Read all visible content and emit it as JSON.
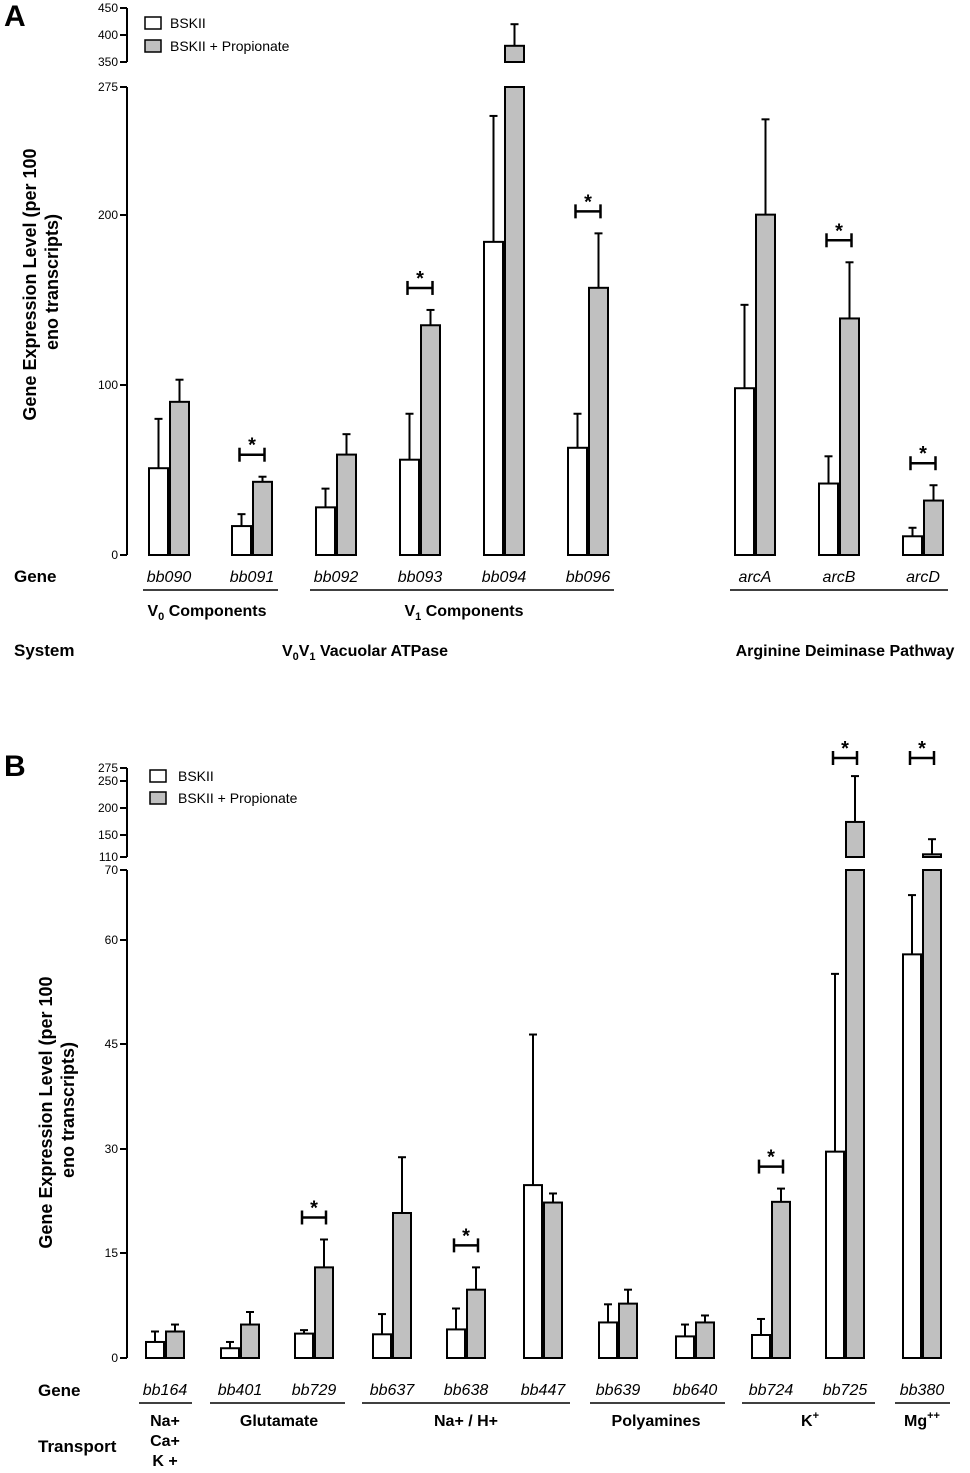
{
  "panels": [
    {
      "label": "A",
      "ylabel_lines": [
        "Gene Expression Level (per 100",
        "eno transcripts)"
      ],
      "legend": [
        "BSKII",
        "BSKII + Propionate"
      ],
      "lower_ticks": [
        "0",
        "100",
        "200",
        "275"
      ],
      "upper_ticks": [
        "350",
        "400",
        "450"
      ],
      "gene_row_label": "Gene",
      "system_row_label": "System",
      "group_labels": [
        "V0 Components",
        "V1 Components"
      ],
      "system_labels": [
        "V0V1 Vacuolar ATPase",
        "Arginine Deiminase Pathway"
      ]
    },
    {
      "label": "B",
      "ylabel_lines": [
        "Gene Expression Level (per 100",
        "eno transcripts)"
      ],
      "legend": [
        "BSKII",
        "BSKII + Propionate"
      ],
      "lower_ticks": [
        "0",
        "15",
        "30",
        "45",
        "60",
        "70"
      ],
      "upper_ticks": [
        "110",
        "150",
        "200",
        "250",
        "275"
      ],
      "gene_row_label": "Gene",
      "transport_row_label": "Transport",
      "group_labels": [
        "Na+",
        "Ca+",
        "K +",
        "Glutamate",
        "Na+ / H+",
        "Polyamines",
        "K+",
        "Mg++"
      ]
    }
  ],
  "chart_data": [
    {
      "type": "bar",
      "title": "A",
      "ylabel": "Gene Expression Level (per 100 eno transcripts)",
      "y_axis_break": {
        "lower_range": [
          0,
          275
        ],
        "upper_range": [
          350,
          450
        ]
      },
      "categories": [
        "bb090",
        "bb091",
        "bb092",
        "bb093",
        "bb094",
        "bb096",
        "arcA",
        "arcB",
        "arcD"
      ],
      "series": [
        {
          "name": "BSKII",
          "color": "#ffffff",
          "values": [
            51,
            17,
            28,
            56,
            184,
            63,
            98,
            42,
            11
          ],
          "error": [
            29,
            7,
            11,
            27,
            74,
            20,
            49,
            16,
            5
          ]
        },
        {
          "name": "BSKII + Propionate",
          "color": "#c0c0c0",
          "values": [
            90,
            43,
            59,
            135,
            380,
            157,
            200,
            139,
            32
          ],
          "error": [
            13,
            3,
            12,
            9,
            40,
            32,
            56,
            33,
            9
          ]
        }
      ],
      "significant": [
        "bb091",
        "bb093",
        "bb096",
        "arcB",
        "arcD"
      ],
      "significance_marker": "*"
    },
    {
      "type": "bar",
      "title": "B",
      "ylabel": "Gene Expression Level (per 100 eno transcripts)",
      "y_axis_break": {
        "lower_range": [
          0,
          70
        ],
        "upper_range": [
          110,
          275
        ]
      },
      "categories": [
        "bb164",
        "bb401",
        "bb729",
        "bb637",
        "bb638",
        "bb447",
        "bb639",
        "bb640",
        "bb724",
        "bb725",
        "bb380"
      ],
      "series": [
        {
          "name": "BSKII",
          "color": "#ffffff",
          "values": [
            2.3,
            1.4,
            3.5,
            3.4,
            4.1,
            24.8,
            5.1,
            3.1,
            3.3,
            29.6,
            57.9
          ],
          "error": [
            1.5,
            0.9,
            0.5,
            2.9,
            3.0,
            21.6,
            2.6,
            1.7,
            2.3,
            25.5,
            8.5
          ]
        },
        {
          "name": "BSKII + Propionate",
          "color": "#c0c0c0",
          "values": [
            3.8,
            4.8,
            13.0,
            20.8,
            9.8,
            22.3,
            7.8,
            5.1,
            22.4,
            175,
            115
          ],
          "error": [
            1.0,
            1.8,
            4.0,
            8.0,
            3.2,
            1.3,
            2.0,
            1.0,
            1.9,
            85,
            28
          ]
        }
      ],
      "significant": [
        "bb729",
        "bb638",
        "bb724",
        "bb725",
        "bb380"
      ],
      "significance_marker": "*"
    }
  ]
}
